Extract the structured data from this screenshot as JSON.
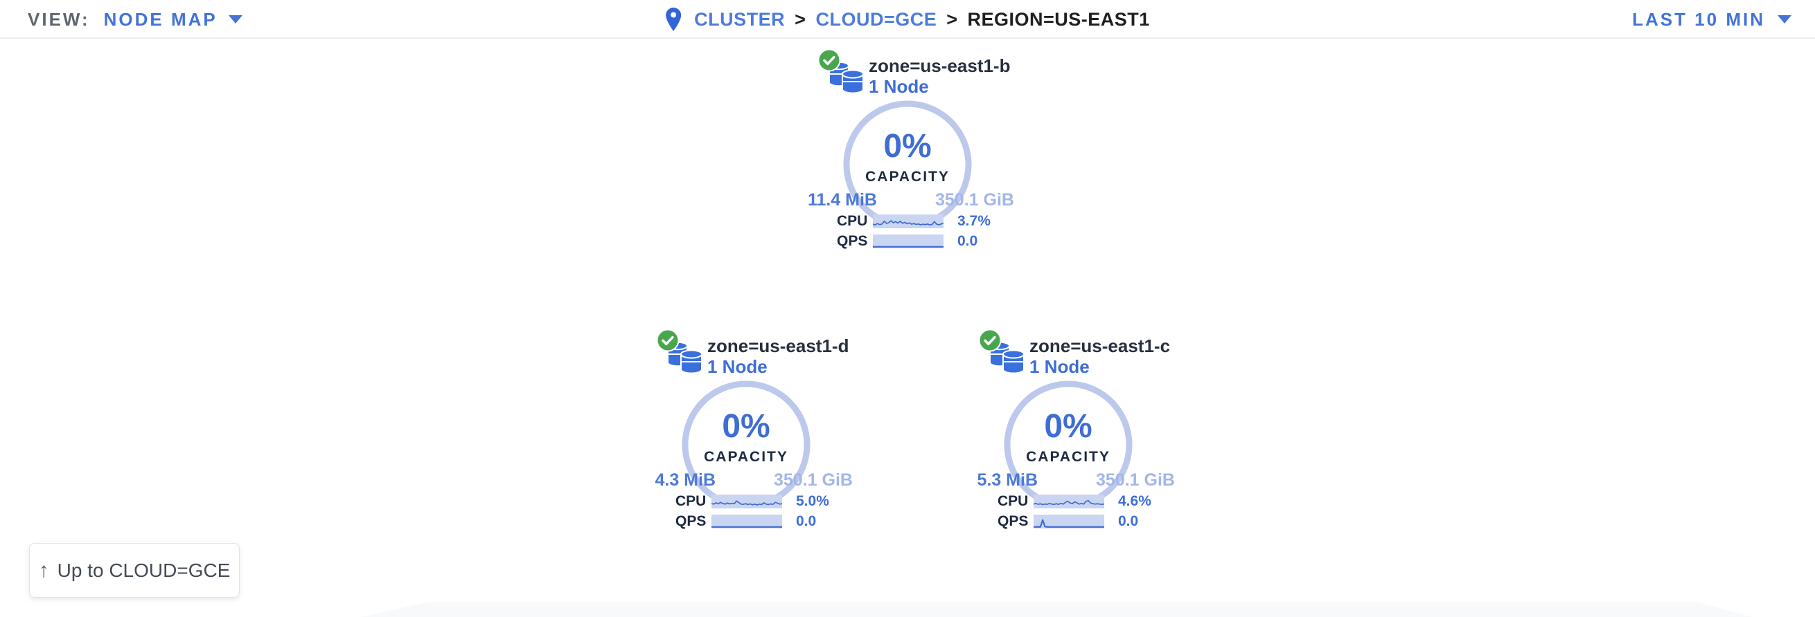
{
  "view_bar": {
    "view_label": "VIEW:",
    "view_value": "NODE MAP",
    "breadcrumb": {
      "cluster": "CLUSTER",
      "sep1": ">",
      "cloud": "CLOUD=GCE",
      "sep2": ">",
      "region": "REGION=US-EAST1"
    },
    "time_range": "LAST 10 MIN"
  },
  "zones": [
    {
      "status": "healthy",
      "name": "zone=us-east1-b",
      "node_count": "1 Node",
      "capacity_pct": "0%",
      "capacity_label": "CAPACITY",
      "capacity_used": "11.4 MiB",
      "capacity_total": "350.1 GiB",
      "cpu_label": "CPU",
      "cpu_value": "3.7%",
      "cpu_series": [
        0.28,
        0.22,
        0.34,
        0.24,
        0.3,
        0.55,
        0.35,
        0.42,
        0.6,
        0.4,
        0.52,
        0.38,
        0.55,
        0.36,
        0.45,
        0.32,
        0.4,
        0.28,
        0.34,
        0.26,
        0.3,
        0.22,
        0.28,
        0.24,
        0.3,
        0.22,
        0.26,
        0.52,
        0.28,
        0.22,
        0.3,
        0.38
      ],
      "qps_label": "QPS",
      "qps_value": "0.0",
      "qps_series": [
        0.05,
        0.05,
        0.05,
        0.05,
        0.05,
        0.05,
        0.05,
        0.05,
        0.05,
        0.05,
        0.05,
        0.05,
        0.05,
        0.05,
        0.05,
        0.05,
        0.05,
        0.05,
        0.05,
        0.05,
        0.05,
        0.05,
        0.05,
        0.05,
        0.05,
        0.05,
        0.05,
        0.05,
        0.05,
        0.05,
        0.05,
        0.05
      ]
    },
    {
      "status": "healthy",
      "name": "zone=us-east1-d",
      "node_count": "1 Node",
      "capacity_pct": "0%",
      "capacity_label": "CAPACITY",
      "capacity_used": "4.3 MiB",
      "capacity_total": "350.1 GiB",
      "cpu_label": "CPU",
      "cpu_value": "5.0%",
      "cpu_series": [
        0.35,
        0.3,
        0.42,
        0.32,
        0.46,
        0.36,
        0.3,
        0.4,
        0.32,
        0.36,
        0.34,
        0.58,
        0.44,
        0.3,
        0.28,
        0.34,
        0.26,
        0.32,
        0.24,
        0.3,
        0.22,
        0.3,
        0.26,
        0.42,
        0.3,
        0.26,
        0.32,
        0.28,
        0.46,
        0.38,
        0.3,
        0.34
      ],
      "qps_label": "QPS",
      "qps_value": "0.0",
      "qps_series": [
        0.05,
        0.05,
        0.05,
        0.05,
        0.05,
        0.05,
        0.05,
        0.05,
        0.05,
        0.05,
        0.05,
        0.05,
        0.05,
        0.05,
        0.05,
        0.05,
        0.05,
        0.05,
        0.05,
        0.05,
        0.05,
        0.05,
        0.05,
        0.05,
        0.05,
        0.05,
        0.05,
        0.05,
        0.05,
        0.05,
        0.05,
        0.05
      ]
    },
    {
      "status": "healthy",
      "name": "zone=us-east1-c",
      "node_count": "1 Node",
      "capacity_pct": "0%",
      "capacity_label": "CAPACITY",
      "capacity_used": "5.3 MiB",
      "capacity_total": "350.1 GiB",
      "cpu_label": "CPU",
      "cpu_value": "4.6%",
      "cpu_series": [
        0.3,
        0.36,
        0.28,
        0.33,
        0.26,
        0.31,
        0.28,
        0.36,
        0.3,
        0.28,
        0.33,
        0.28,
        0.36,
        0.3,
        0.46,
        0.56,
        0.4,
        0.34,
        0.5,
        0.42,
        0.3,
        0.36,
        0.3,
        0.55,
        0.62,
        0.4,
        0.34,
        0.3,
        0.33,
        0.3,
        0.28,
        0.31
      ],
      "qps_label": "QPS",
      "qps_value": "0.0",
      "qps_series": [
        0.05,
        0.05,
        0.06,
        0.05,
        0.68,
        0.08,
        0.05,
        0.05,
        0.05,
        0.05,
        0.05,
        0.05,
        0.05,
        0.05,
        0.05,
        0.05,
        0.05,
        0.05,
        0.05,
        0.05,
        0.05,
        0.05,
        0.05,
        0.05,
        0.05,
        0.05,
        0.05,
        0.05,
        0.05,
        0.05,
        0.05,
        0.05
      ]
    }
  ],
  "up_button": {
    "arrow": "↑",
    "label": "Up to CLOUD=GCE"
  },
  "colors": {
    "accent_blue": "#3e6dd4",
    "link_blue": "#4173d9",
    "ring_light_blue": "#bcc9ec",
    "spark_bg": "#c9d5f1",
    "spark_line": "#3f6ad1",
    "healthy_green": "#48a74c",
    "dark_navy": "#1d2940"
  }
}
